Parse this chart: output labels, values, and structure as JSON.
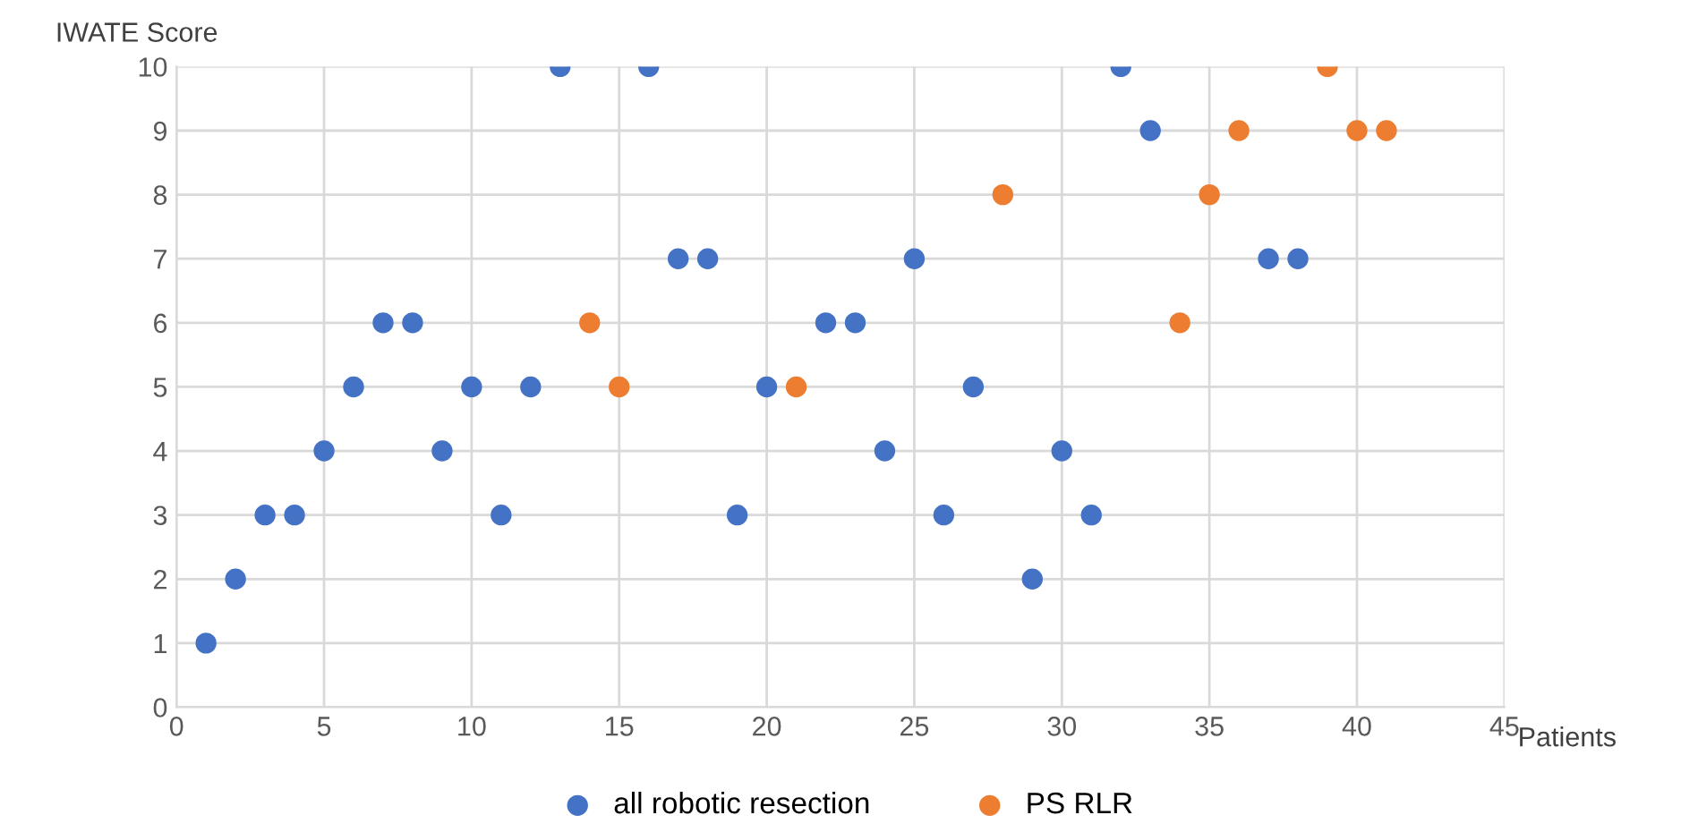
{
  "chart_data": {
    "type": "scatter",
    "xlabel": "Patients",
    "ylabel": "IWATE Score",
    "xlim": [
      0,
      45
    ],
    "xticks": [
      0,
      5,
      10,
      15,
      20,
      25,
      30,
      35,
      40,
      45
    ],
    "ylim": [
      0,
      10
    ],
    "yticks": [
      0,
      1,
      2,
      3,
      4,
      5,
      6,
      7,
      8,
      9,
      10
    ],
    "grid": true,
    "legend": "bottom",
    "marker": "circle",
    "series": [
      {
        "name": "all robotic resection",
        "color": "#4472c4",
        "x": [
          1,
          2,
          3,
          4,
          5,
          6,
          7,
          8,
          9,
          10,
          11,
          12,
          13,
          16,
          17,
          18,
          19,
          20,
          22,
          23,
          24,
          25,
          26,
          27,
          29,
          30,
          31,
          32,
          33,
          37,
          38
        ],
        "values": [
          1,
          2,
          3,
          3,
          4,
          5,
          6,
          6,
          4,
          5,
          3,
          5,
          10,
          10,
          7,
          7,
          3,
          5,
          6,
          6,
          4,
          7,
          3,
          5,
          2,
          4,
          3,
          10,
          9,
          7,
          7
        ]
      },
      {
        "name": "PS RLR",
        "color": "#ed7d31",
        "x": [
          14,
          15,
          21,
          28,
          34,
          35,
          36,
          39,
          40,
          41
        ],
        "values": [
          6,
          5,
          5,
          8,
          6,
          8,
          9,
          10,
          9,
          9
        ]
      }
    ]
  }
}
